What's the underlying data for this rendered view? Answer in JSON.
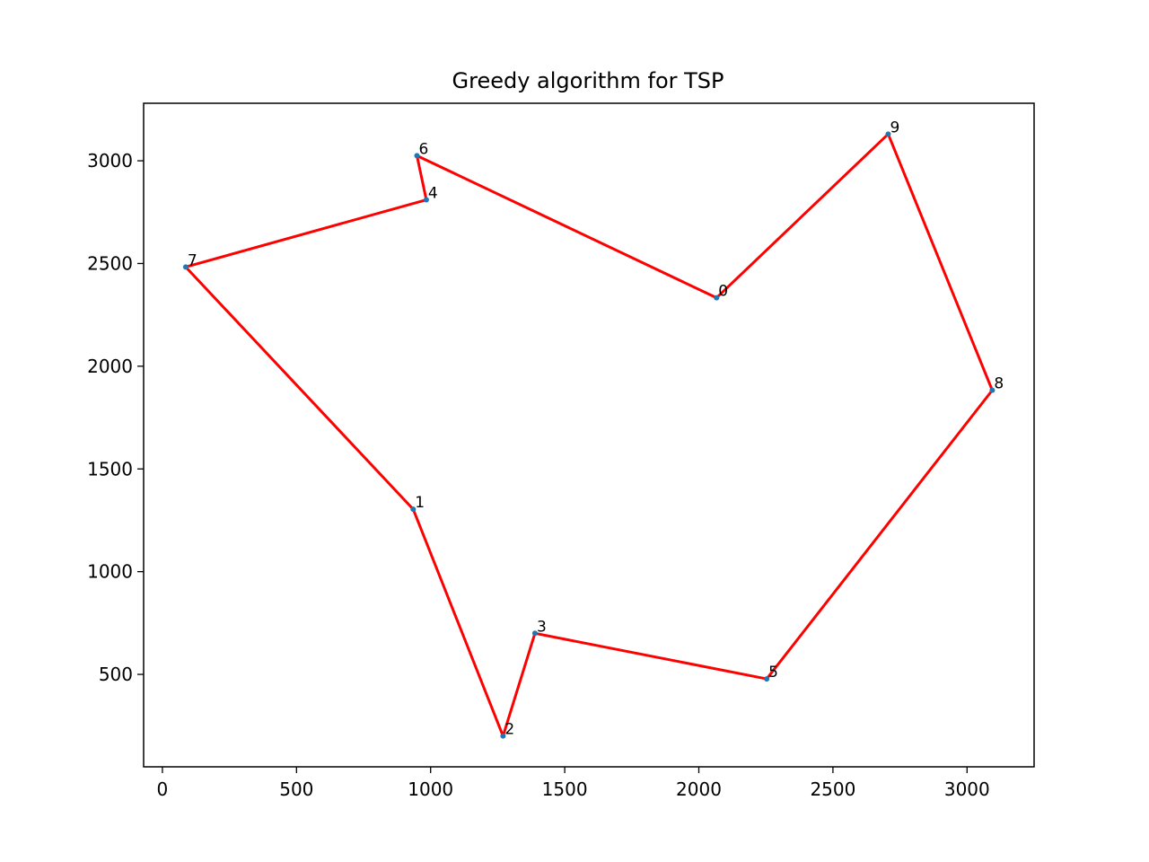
{
  "chart_data": {
    "type": "line",
    "title": "Greedy algorithm for TSP",
    "xlabel": "",
    "ylabel": "",
    "xlim": [
      -70,
      3250
    ],
    "ylim": [
      50,
      3280
    ],
    "xticks": [
      0,
      500,
      1000,
      1500,
      2000,
      2500,
      3000
    ],
    "xtick_labels": [
      "0",
      "500",
      "1000",
      "1500",
      "2000",
      "2500",
      "3000"
    ],
    "yticks": [
      500,
      1000,
      1500,
      2000,
      2500,
      3000
    ],
    "ytick_labels": [
      "500",
      "1000",
      "1500",
      "2000",
      "2500",
      "3000"
    ],
    "grid": false,
    "points": [
      {
        "label": "0",
        "x": 2066,
        "y": 2333
      },
      {
        "label": "1",
        "x": 935,
        "y": 1304
      },
      {
        "label": "2",
        "x": 1270,
        "y": 200
      },
      {
        "label": "3",
        "x": 1389,
        "y": 700
      },
      {
        "label": "4",
        "x": 984,
        "y": 2810
      },
      {
        "label": "5",
        "x": 2253,
        "y": 478
      },
      {
        "label": "6",
        "x": 949,
        "y": 3025
      },
      {
        "label": "7",
        "x": 87,
        "y": 2483
      },
      {
        "label": "8",
        "x": 3094,
        "y": 1883
      },
      {
        "label": "9",
        "x": 2706,
        "y": 3130
      }
    ],
    "route": [
      0,
      6,
      4,
      7,
      1,
      2,
      3,
      5,
      8,
      9,
      0
    ],
    "route_color": "#ff0000",
    "point_color": "#1f77b4"
  }
}
